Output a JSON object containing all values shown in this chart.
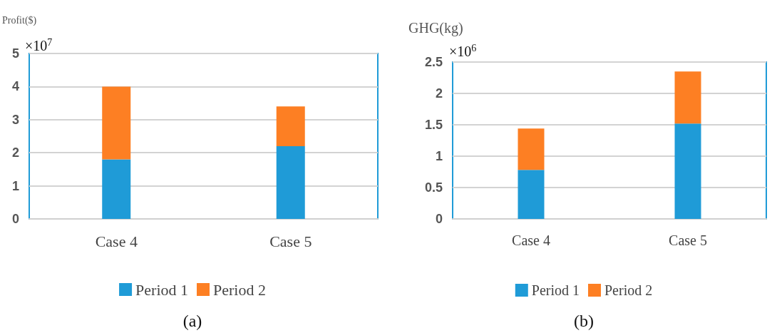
{
  "chart_data": [
    {
      "type": "bar",
      "title": "(a)",
      "ylabel": "Profit($)",
      "annotations": [
        "×10$^{7}$"
      ],
      "categories": [
        "Case 4",
        "Case 5"
      ],
      "stacked": true,
      "series": [
        {
          "name": "Period 1",
          "color": "#1f9bd7",
          "values": [
            1.8,
            2.2
          ]
        },
        {
          "name": "Period 2",
          "color": "#fd7f23",
          "values": [
            2.2,
            1.2
          ]
        }
      ],
      "ylim": [
        0,
        5
      ],
      "yticks": [
        0,
        1,
        2,
        3,
        4,
        5
      ],
      "grid": "y",
      "legend": "bottom"
    },
    {
      "type": "bar",
      "title": "(b)",
      "ylabel": "GHG(kg)",
      "annotations": [
        "×10$^{6}$"
      ],
      "categories": [
        "Case 4",
        "Case 5"
      ],
      "stacked": true,
      "series": [
        {
          "name": "Period 1",
          "color": "#1f9bd7",
          "values": [
            0.78,
            1.52
          ]
        },
        {
          "name": "Period 2",
          "color": "#fd7f23",
          "values": [
            0.66,
            0.83
          ]
        }
      ],
      "ylim": [
        0,
        2.5
      ],
      "yticks": [
        0,
        0.5,
        1,
        1.5,
        2,
        2.5
      ],
      "grid": "y",
      "legend": "bottom"
    }
  ]
}
